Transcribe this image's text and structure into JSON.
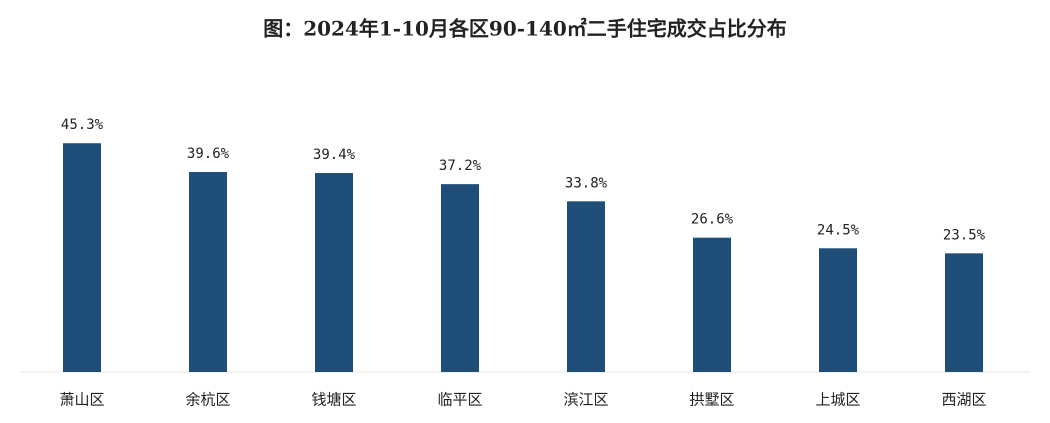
{
  "chart_data": {
    "type": "bar",
    "title": "图：2024年1-10月各区90-140㎡二手住宅成交占比分布",
    "categories": [
      "萧山区",
      "余杭区",
      "钱塘区",
      "临平区",
      "滨江区",
      "拱墅区",
      "上城区",
      "西湖区"
    ],
    "values": [
      45.3,
      39.6,
      39.4,
      37.2,
      33.8,
      26.6,
      24.5,
      23.5
    ],
    "value_labels": [
      "45.3%",
      "39.6%",
      "39.4%",
      "37.2%",
      "33.8%",
      "26.6%",
      "24.5%",
      "23.5%"
    ],
    "color": "#1f4e79"
  }
}
